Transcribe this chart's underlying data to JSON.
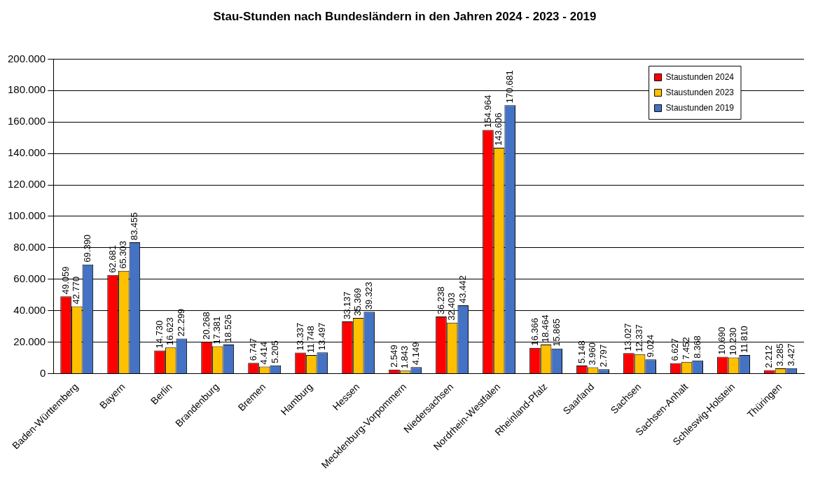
{
  "chart_data": {
    "type": "bar",
    "title": "Stau-Stunden nach Bundesländern in den Jahren 2024 - 2023 - 2019",
    "categories": [
      "Baden-Württemberg",
      "Bayern",
      "Berlin",
      "Brandenburg",
      "Bremen",
      "Hamburg",
      "Hessen",
      "Mecklenburg-Vorpommern",
      "Niedersachsen",
      "Nordrhein-Westfalen",
      "Rheinland-Pfalz",
      "Saarland",
      "Sachsen",
      "Sachsen-Anhalt",
      "Schleswig-Holstein",
      "Thüringen"
    ],
    "series": [
      {
        "name": "Staustunden 2024",
        "color": "#ff0000",
        "values": [
          49059,
          62681,
          14730,
          20268,
          6747,
          13337,
          33137,
          2549,
          36238,
          154964,
          16366,
          5148,
          13027,
          6627,
          10690,
          2212
        ],
        "value_labels": [
          "49.059",
          "62.681",
          "14.730",
          "20.268",
          "6.747",
          "13.337",
          "33.137",
          "2.549",
          "36.238",
          "154.964",
          "16.366",
          "5.148",
          "13.027",
          "6.627",
          "10.690",
          "2.212"
        ]
      },
      {
        "name": "Staustunden 2023",
        "color": "#ffc000",
        "values": [
          42770,
          65303,
          16623,
          17381,
          4414,
          11748,
          35369,
          1843,
          32403,
          143606,
          18464,
          3960,
          12337,
          7452,
          10230,
          3285
        ],
        "value_labels": [
          "42.770",
          "65.303",
          "16.623",
          "17.381",
          "4.414",
          "11.748",
          "35.369",
          "1.843",
          "32.403",
          "143.606",
          "18.464",
          "3.960",
          "12.337",
          "7.452",
          "10.230",
          "3.285"
        ]
      },
      {
        "name": "Staustunden 2019",
        "color": "#4472c4",
        "values": [
          69390,
          83455,
          22299,
          18526,
          5205,
          13497,
          39323,
          4149,
          43442,
          170681,
          15865,
          2797,
          9024,
          8368,
          11810,
          3427
        ],
        "value_labels": [
          "69.390",
          "83.455",
          "22.299",
          "18.526",
          "5.205",
          "13.497",
          "39.323",
          "4.149",
          "43.442",
          "170.681",
          "15.865",
          "2.797",
          "9.024",
          "8.368",
          "11.810",
          "3.427"
        ]
      }
    ],
    "ylim": [
      0,
      200000
    ],
    "yticks": [
      {
        "value": 0,
        "label": "0"
      },
      {
        "value": 20000,
        "label": "20.000"
      },
      {
        "value": 40000,
        "label": "40.000"
      },
      {
        "value": 60000,
        "label": "60.000"
      },
      {
        "value": 80000,
        "label": "80.000"
      },
      {
        "value": 100000,
        "label": "100.000"
      },
      {
        "value": 120000,
        "label": "120.000"
      },
      {
        "value": 140000,
        "label": "140.000"
      },
      {
        "value": 160000,
        "label": "160.000"
      },
      {
        "value": 180000,
        "label": "180.000"
      },
      {
        "value": 200000,
        "label": "200.000"
      }
    ],
    "grid": "y",
    "legend": "top right"
  }
}
